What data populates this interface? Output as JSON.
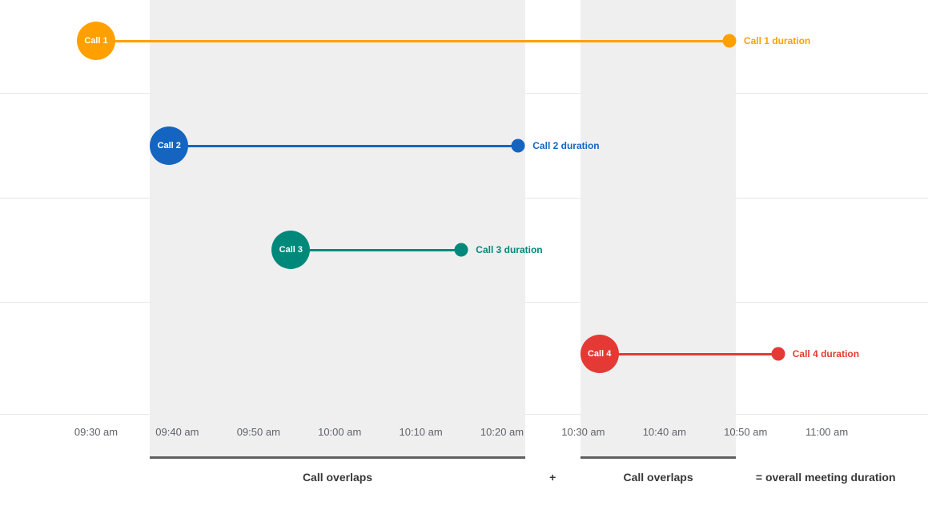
{
  "chart_data": {
    "type": "timeline",
    "x_axis": {
      "unit": "time",
      "ticks": [
        {
          "label": "09:30 am",
          "minutes": 570
        },
        {
          "label": "09:40 am",
          "minutes": 580
        },
        {
          "label": "09:50 am",
          "minutes": 590
        },
        {
          "label": "10:00 am",
          "minutes": 600
        },
        {
          "label": "10:10 am",
          "minutes": 610
        },
        {
          "label": "10:20 am",
          "minutes": 620
        },
        {
          "label": "10:30 am",
          "minutes": 630
        },
        {
          "label": "10:40 am",
          "minutes": 640
        },
        {
          "label": "10:50 am",
          "minutes": 650
        },
        {
          "label": "11:00 am",
          "minutes": 660
        }
      ]
    },
    "calls": [
      {
        "id": "call-1",
        "label": "Call 1",
        "duration_label": "Call 1 duration",
        "color": "#FFA000",
        "start_time": "09:30 am",
        "end_time": "10:48 am",
        "start_minutes": 570,
        "end_minutes": 648
      },
      {
        "id": "call-2",
        "label": "Call 2",
        "duration_label": "Call 2 duration",
        "color": "#1565C0",
        "start_time": "09:39 am",
        "end_time": "10:22 am",
        "start_minutes": 579,
        "end_minutes": 622
      },
      {
        "id": "call-3",
        "label": "Call 3",
        "duration_label": "Call 3 duration",
        "color": "#00897B",
        "start_time": "09:54 am",
        "end_time": "10:15 am",
        "start_minutes": 594,
        "end_minutes": 615
      },
      {
        "id": "call-4",
        "label": "Call 4",
        "duration_label": "Call 4 duration",
        "color": "#E53935",
        "start_time": "10:32 am",
        "end_time": "10:54 am",
        "start_minutes": 632,
        "end_minutes": 654
      }
    ],
    "overlap_bands": [
      {
        "caption": "Call overlaps",
        "start_minutes": 579,
        "end_minutes": 622
      },
      {
        "caption": "Call overlaps",
        "start_minutes": 632,
        "end_minutes": 648
      }
    ],
    "footer": {
      "plus_label": "+",
      "equals_label": "= overall meeting duration"
    },
    "styles": {
      "background": "#FFFFFF",
      "band_fill": "#EFEFEF",
      "band_underline": "#5F5F5F",
      "gridline": "#E7E7E7",
      "tick_text": "#5F6368",
      "caption_text": "#383838"
    }
  }
}
